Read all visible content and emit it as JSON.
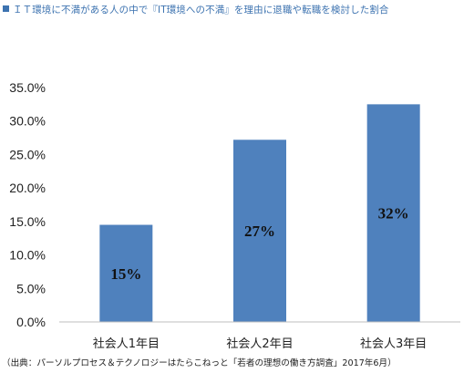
{
  "header": {
    "title": "ＩＴ環境に不満がある人の中で『IT環境への不満』を理由に退職や転職を検討した割合",
    "bullet_color": "#3d73b0"
  },
  "chart_data": {
    "type": "bar",
    "title": "ＩＴ環境に不満がある人の中で『IT環境への不満』を理由に退職や転職を検討した割合",
    "categories": [
      "社会人1年目",
      "社会人2年目",
      "社会人3年目"
    ],
    "values": [
      0.145,
      0.272,
      0.325
    ],
    "data_labels": [
      "15%",
      "27%",
      "32%"
    ],
    "yticks": [
      "0.0%",
      "5.0%",
      "10.0%",
      "15.0%",
      "20.0%",
      "25.0%",
      "30.0%",
      "35.0%"
    ],
    "ylim": [
      0,
      0.35
    ],
    "xlabel": "",
    "ylabel": "",
    "bar_color": "#4f81bd",
    "grid": false,
    "legend": "none"
  },
  "footer": {
    "source": "（出典：パーソルプロセス＆テクノロジーはたらこねっと「若者の理想の働き方調査」2017年6月）"
  }
}
